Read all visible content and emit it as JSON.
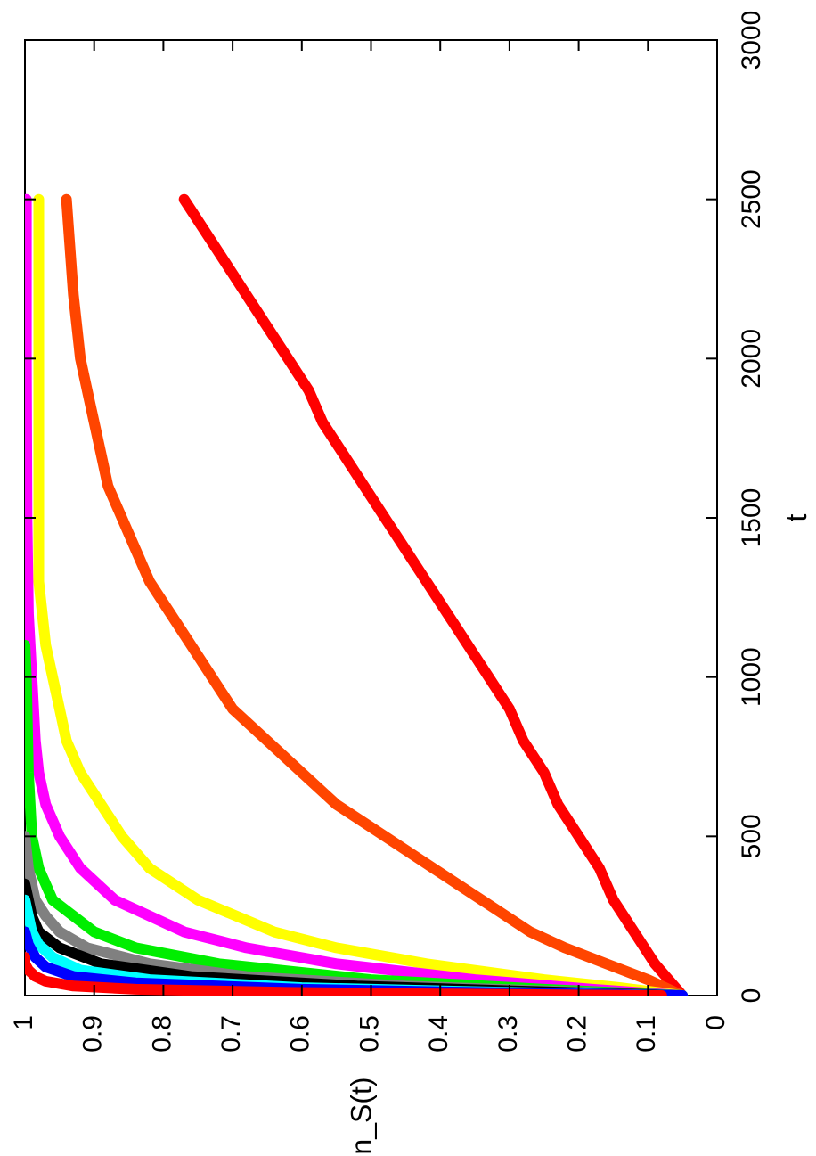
{
  "chart_data": {
    "type": "line",
    "orientation": "rotated-90-clockwise",
    "xlabel": "t",
    "ylabel": "n_S(t)",
    "xlim": [
      0,
      3000
    ],
    "ylim": [
      0,
      1
    ],
    "x_ticks": [
      "0",
      "500",
      "1000",
      "1500",
      "2000",
      "2500",
      "3000"
    ],
    "y_ticks": [
      "0",
      "0.1",
      "0.2",
      "0.3",
      "0.4",
      "0.5",
      "0.6",
      "0.7",
      "0.8",
      "0.9",
      "1"
    ],
    "grid": false,
    "legend": "none",
    "series": [
      {
        "color": "#ff0000",
        "t": [
          0,
          100,
          200,
          300,
          400,
          500,
          600,
          700,
          800,
          900,
          1000,
          1100,
          1200,
          1300,
          1400,
          1500,
          1600,
          1700,
          1800,
          1900,
          2000,
          2100,
          2200,
          2300,
          2400,
          2500
        ],
        "n": [
          0.05,
          0.09,
          0.12,
          0.15,
          0.17,
          0.2,
          0.23,
          0.25,
          0.28,
          0.3,
          0.33,
          0.36,
          0.39,
          0.42,
          0.45,
          0.48,
          0.51,
          0.54,
          0.57,
          0.59,
          0.62,
          0.65,
          0.68,
          0.71,
          0.74,
          0.77
        ]
      },
      {
        "color": "#ff4500",
        "t": [
          0,
          50,
          100,
          150,
          200,
          300,
          400,
          500,
          600,
          700,
          800,
          900,
          1000,
          1100,
          1200,
          1300,
          1400,
          1500,
          1600,
          1700,
          1800,
          1900,
          2000,
          2200,
          2500
        ],
        "n": [
          0.05,
          0.1,
          0.16,
          0.22,
          0.27,
          0.34,
          0.41,
          0.48,
          0.55,
          0.6,
          0.65,
          0.7,
          0.73,
          0.76,
          0.79,
          0.82,
          0.84,
          0.86,
          0.88,
          0.89,
          0.9,
          0.91,
          0.92,
          0.93,
          0.94
        ]
      },
      {
        "color": "#ffff00",
        "t": [
          0,
          25,
          50,
          100,
          150,
          200,
          300,
          400,
          500,
          600,
          700,
          800,
          900,
          1000,
          1100,
          1200,
          1300,
          1500,
          2000,
          2500
        ],
        "n": [
          0.05,
          0.14,
          0.25,
          0.42,
          0.55,
          0.64,
          0.75,
          0.82,
          0.86,
          0.89,
          0.92,
          0.94,
          0.95,
          0.96,
          0.97,
          0.975,
          0.98,
          0.98,
          0.98,
          0.98
        ]
      },
      {
        "color": "#ff00ff",
        "t": [
          0,
          20,
          50,
          100,
          150,
          200,
          300,
          400,
          500,
          600,
          700,
          800,
          1000,
          1200,
          1500,
          2000,
          2500
        ],
        "n": [
          0.05,
          0.18,
          0.35,
          0.55,
          0.68,
          0.77,
          0.87,
          0.92,
          0.95,
          0.97,
          0.98,
          0.985,
          0.99,
          0.995,
          0.997,
          0.998,
          0.998
        ]
      },
      {
        "color": "#00ee00",
        "t": [
          0,
          20,
          50,
          100,
          150,
          200,
          300,
          400,
          500,
          700,
          1000,
          1100
        ],
        "n": [
          0.05,
          0.25,
          0.5,
          0.72,
          0.84,
          0.9,
          0.96,
          0.98,
          0.99,
          0.995,
          0.998,
          1.0
        ]
      },
      {
        "color": "#808080",
        "t": [
          0,
          15,
          30,
          60,
          100,
          150,
          200,
          250,
          300,
          400,
          500
        ],
        "n": [
          0.05,
          0.25,
          0.45,
          0.68,
          0.82,
          0.91,
          0.95,
          0.97,
          0.985,
          0.995,
          1.0
        ]
      },
      {
        "color": "#000000",
        "t": [
          0,
          15,
          30,
          60,
          100,
          150,
          200,
          250,
          300,
          350
        ],
        "n": [
          0.05,
          0.3,
          0.52,
          0.76,
          0.89,
          0.95,
          0.98,
          0.99,
          0.995,
          1.0
        ]
      },
      {
        "color": "#00ffff",
        "t": [
          0,
          10,
          25,
          50,
          80,
          120,
          160,
          200,
          250,
          300
        ],
        "n": [
          0.05,
          0.3,
          0.6,
          0.82,
          0.92,
          0.96,
          0.98,
          0.99,
          0.995,
          1.0
        ]
      },
      {
        "color": "#0000ff",
        "t": [
          0,
          10,
          20,
          40,
          60,
          90,
          120,
          160,
          200
        ],
        "n": [
          0.05,
          0.35,
          0.6,
          0.84,
          0.93,
          0.97,
          0.985,
          0.995,
          1.0
        ]
      },
      {
        "color": "#ff0000",
        "t": [
          0,
          5,
          10,
          20,
          30,
          45,
          60,
          80,
          100,
          120
        ],
        "n": [
          0.08,
          0.4,
          0.62,
          0.84,
          0.93,
          0.97,
          0.985,
          0.995,
          1.0,
          1.0
        ]
      }
    ]
  }
}
